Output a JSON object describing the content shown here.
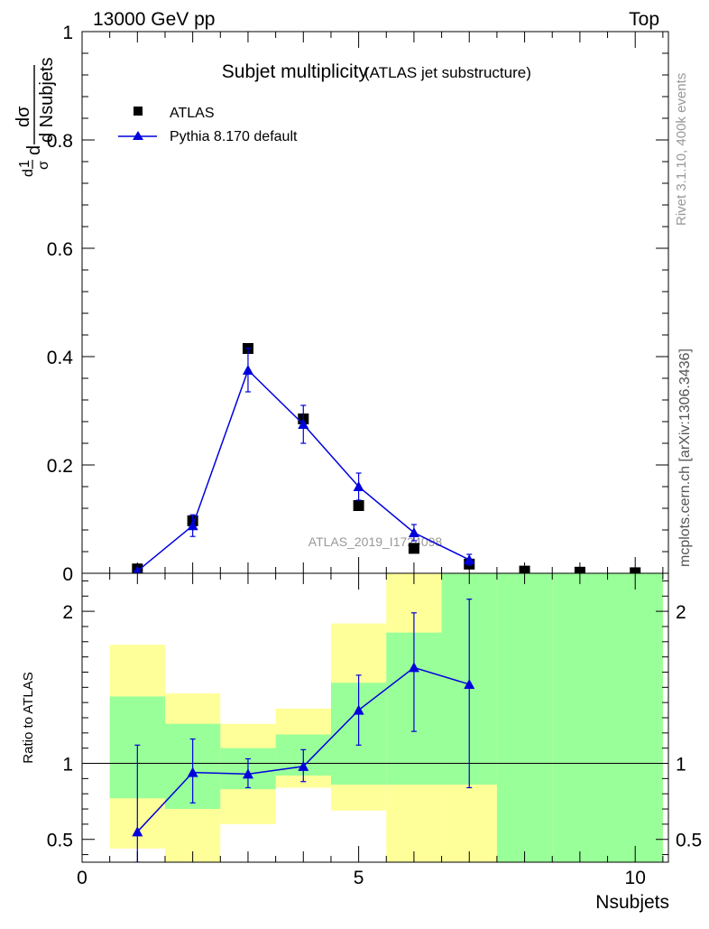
{
  "header": {
    "energy_label": "13000 GeV pp",
    "process_label": "Top"
  },
  "side": {
    "rivet_label": "Rivet 3.1.10,  400k events",
    "mcplots_label": "mcplots.cern.ch [arXiv:1306.3436]"
  },
  "colors": {
    "mc_line": "#0000dd",
    "data_marker": "#000000",
    "band_inner": "#99ff99",
    "band_outer": "#ffff99",
    "watermark": "#999999"
  },
  "chart_data": [
    {
      "type": "scatter",
      "title": "Subjet multiplicity",
      "subtitle": "(ATLAS jet substructure)",
      "watermark": "ATLAS_2019_I1724098",
      "ylabel_top": "1",
      "ylabel_num": "dσ",
      "ylabel_frac_prefix": "d",
      "ylabel_sigma": "σ",
      "ylabel_den": "d Nsubjets",
      "xlim": [
        0,
        10.6
      ],
      "ylim": [
        0,
        1.0
      ],
      "yticks": [
        {
          "v": 0,
          "label": "0"
        },
        {
          "v": 0.2,
          "label": "0.2"
        },
        {
          "v": 0.4,
          "label": "0.4"
        },
        {
          "v": 0.6,
          "label": "0.6"
        },
        {
          "v": 0.8,
          "label": "0.8"
        },
        {
          "v": 1.0,
          "label": "1"
        }
      ],
      "legend": [
        {
          "name": "ATLAS",
          "marker": "square"
        },
        {
          "name": "Pythia 8.170 default",
          "marker": "triangle"
        }
      ],
      "series": [
        {
          "name": "ATLAS",
          "x": [
            1,
            2,
            3,
            4,
            5,
            6,
            7,
            8,
            9,
            10
          ],
          "values": [
            0.008,
            0.097,
            0.415,
            0.285,
            0.125,
            0.046,
            0.017,
            0.004,
            0.002,
            0.001
          ]
        },
        {
          "name": "Pythia 8.170 default",
          "x": [
            1,
            2,
            3,
            4,
            5,
            6,
            7
          ],
          "values": [
            0.004,
            0.088,
            0.375,
            0.275,
            0.16,
            0.075,
            0.025
          ],
          "err_low": [
            0.002,
            0.02,
            0.04,
            0.035,
            0.025,
            0.015,
            0.01
          ],
          "err_high": [
            0.002,
            0.02,
            0.04,
            0.035,
            0.025,
            0.015,
            0.01
          ]
        }
      ]
    },
    {
      "type": "scatter",
      "title": "",
      "ylabel": "Ratio to ATLAS",
      "xlabel": "Nsubjets",
      "xlim": [
        0,
        10.6
      ],
      "ylim": [
        0.35,
        2.25
      ],
      "xticks": [
        {
          "v": 0,
          "label": "0"
        },
        {
          "v": 5,
          "label": "5"
        },
        {
          "v": 10,
          "label": "10"
        }
      ],
      "yticks": [
        {
          "v": 0.5,
          "label": "0.5"
        },
        {
          "v": 1,
          "label": "1"
        },
        {
          "v": 2,
          "label": "2"
        }
      ],
      "reference_line": 1,
      "bands": {
        "x_low": [
          0.5,
          1.5,
          2.5,
          3.5,
          4.5,
          5.5,
          6.5,
          7.5,
          8.5,
          9.5
        ],
        "x_high": [
          1.5,
          2.5,
          3.5,
          4.5,
          5.5,
          6.5,
          7.5,
          8.5,
          9.5,
          10.5
        ],
        "inner_low": [
          0.77,
          0.7,
          0.83,
          0.92,
          0.86,
          0.86,
          0.86,
          0.35,
          0.35,
          0.35
        ],
        "inner_high": [
          1.44,
          1.26,
          1.1,
          1.19,
          1.53,
          1.86,
          2.25,
          2.25,
          2.25,
          2.25
        ],
        "outer_low": [
          0.44,
          0.35,
          0.6,
          0.84,
          0.69,
          0.35,
          0.35,
          0.35,
          0.35,
          0.35
        ],
        "outer_high": [
          1.78,
          1.46,
          1.26,
          1.36,
          1.92,
          2.25,
          2.25,
          2.25,
          2.25,
          2.25
        ]
      },
      "series": [
        {
          "name": "Pythia 8.170 default",
          "x": [
            1,
            2,
            3,
            4,
            5,
            6,
            7
          ],
          "values": [
            0.55,
            0.94,
            0.93,
            0.98,
            1.35,
            1.63,
            1.52
          ],
          "err_low": [
            0.35,
            0.74,
            0.84,
            0.88,
            1.12,
            1.21,
            0.84
          ],
          "err_high": [
            1.12,
            1.16,
            1.03,
            1.09,
            1.58,
            1.99,
            2.08
          ]
        }
      ]
    }
  ]
}
